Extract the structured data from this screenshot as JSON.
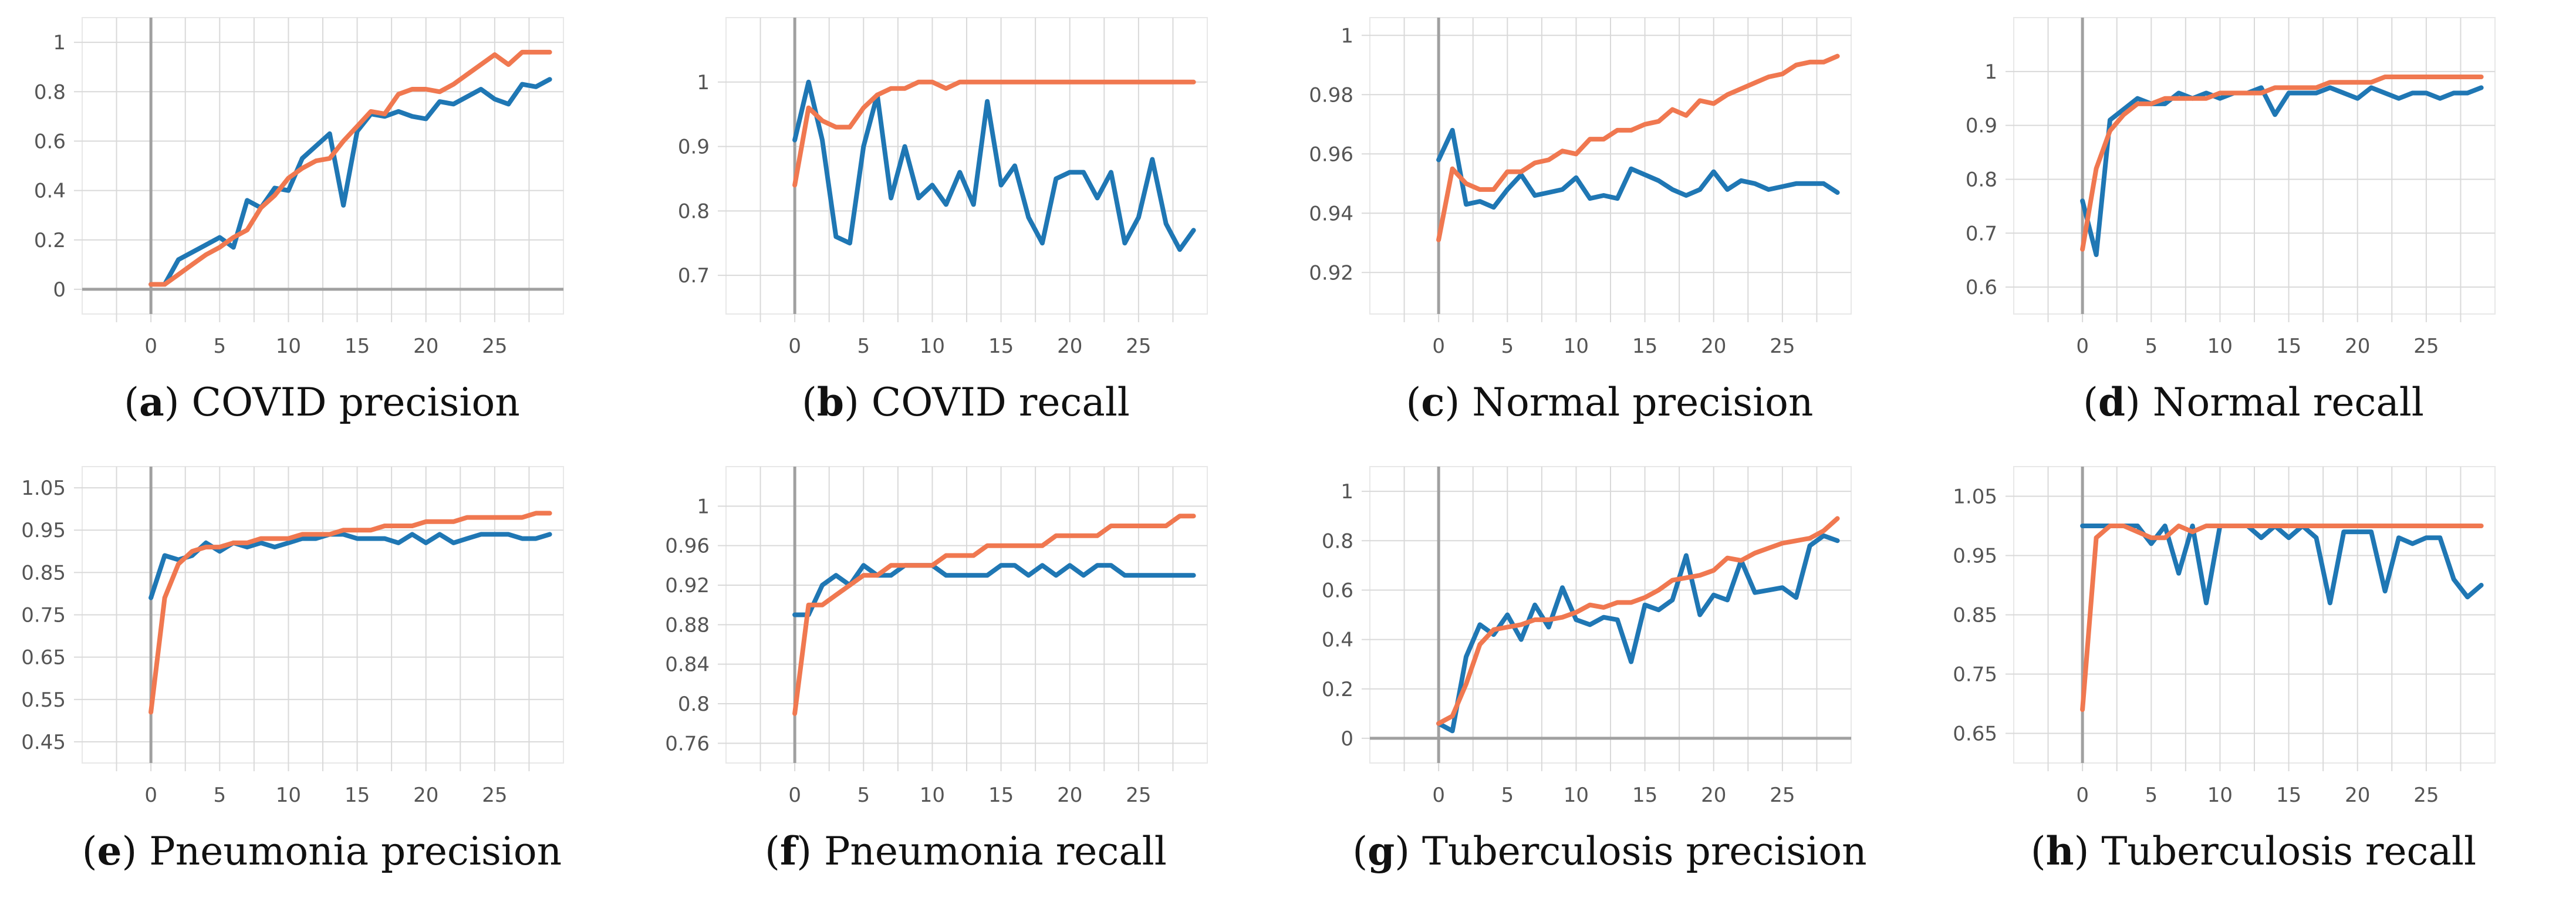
{
  "colors": {
    "series_a": "#1f77b4",
    "series_b": "#f07850"
  },
  "chart_data": [
    {
      "type": "line",
      "letter": "a",
      "caption": "COVID precision",
      "xlim": [
        -5,
        30
      ],
      "ylim": [
        -0.1,
        1.1
      ],
      "xticks": [
        0,
        5,
        10,
        15,
        20,
        25
      ],
      "yticks": [
        0,
        0.2,
        0.4,
        0.6,
        0.8,
        1
      ],
      "ytick_labels": [
        "0",
        "0.2",
        "0.4",
        "0.6",
        "0.8",
        "1"
      ],
      "x": [
        0,
        1,
        2,
        3,
        4,
        5,
        6,
        7,
        8,
        9,
        10,
        11,
        12,
        13,
        14,
        15,
        16,
        17,
        18,
        19,
        20,
        21,
        22,
        23,
        24,
        25,
        26,
        27,
        28,
        29
      ],
      "series": [
        {
          "name": "blue",
          "values": [
            0.02,
            0.02,
            0.12,
            0.15,
            0.18,
            0.21,
            0.17,
            0.36,
            0.33,
            0.41,
            0.4,
            0.53,
            0.58,
            0.63,
            0.34,
            0.64,
            0.71,
            0.7,
            0.72,
            0.7,
            0.69,
            0.76,
            0.75,
            0.78,
            0.81,
            0.77,
            0.75,
            0.83,
            0.82,
            0.85
          ]
        },
        {
          "name": "orange",
          "values": [
            0.02,
            0.02,
            0.06,
            0.1,
            0.14,
            0.17,
            0.21,
            0.24,
            0.33,
            0.38,
            0.45,
            0.49,
            0.52,
            0.53,
            0.6,
            0.66,
            0.72,
            0.71,
            0.79,
            0.81,
            0.81,
            0.8,
            0.83,
            0.87,
            0.91,
            0.95,
            0.91,
            0.96,
            0.96,
            0.96
          ]
        }
      ]
    },
    {
      "type": "line",
      "letter": "b",
      "caption": "COVID recall",
      "xlim": [
        -5,
        30
      ],
      "ylim": [
        0.64,
        1.1
      ],
      "xticks": [
        0,
        5,
        10,
        15,
        20,
        25
      ],
      "yticks": [
        0.7,
        0.8,
        0.9,
        1
      ],
      "ytick_labels": [
        "0.7",
        "0.8",
        "0.9",
        "1"
      ],
      "x": [
        0,
        1,
        2,
        3,
        4,
        5,
        6,
        7,
        8,
        9,
        10,
        11,
        12,
        13,
        14,
        15,
        16,
        17,
        18,
        19,
        20,
        21,
        22,
        23,
        24,
        25,
        26,
        27,
        28,
        29
      ],
      "series": [
        {
          "name": "blue",
          "values": [
            0.91,
            1.0,
            0.91,
            0.76,
            0.75,
            0.9,
            0.98,
            0.82,
            0.9,
            0.82,
            0.84,
            0.81,
            0.86,
            0.81,
            0.97,
            0.84,
            0.87,
            0.79,
            0.75,
            0.85,
            0.86,
            0.86,
            0.82,
            0.86,
            0.75,
            0.79,
            0.88,
            0.78,
            0.74,
            0.77
          ]
        },
        {
          "name": "orange",
          "values": [
            0.84,
            0.96,
            0.94,
            0.93,
            0.93,
            0.96,
            0.98,
            0.99,
            0.99,
            1.0,
            1.0,
            0.99,
            1.0,
            1.0,
            1.0,
            1.0,
            1.0,
            1.0,
            1.0,
            1.0,
            1.0,
            1.0,
            1.0,
            1.0,
            1.0,
            1.0,
            1.0,
            1.0,
            1.0,
            1.0
          ]
        }
      ]
    },
    {
      "type": "line",
      "letter": "c",
      "caption": "Normal precision",
      "xlim": [
        -5,
        30
      ],
      "ylim": [
        0.906,
        1.006
      ],
      "xticks": [
        0,
        5,
        10,
        15,
        20,
        25
      ],
      "yticks": [
        0.92,
        0.94,
        0.96,
        0.98,
        1
      ],
      "ytick_labels": [
        "0.92",
        "0.94",
        "0.96",
        "0.98",
        "1"
      ],
      "x": [
        0,
        1,
        2,
        3,
        4,
        5,
        6,
        7,
        8,
        9,
        10,
        11,
        12,
        13,
        14,
        15,
        16,
        17,
        18,
        19,
        20,
        21,
        22,
        23,
        24,
        25,
        26,
        27,
        28,
        29
      ],
      "series": [
        {
          "name": "blue",
          "values": [
            0.958,
            0.968,
            0.943,
            0.944,
            0.942,
            0.948,
            0.953,
            0.946,
            0.947,
            0.948,
            0.952,
            0.945,
            0.946,
            0.945,
            0.955,
            0.953,
            0.951,
            0.948,
            0.946,
            0.948,
            0.954,
            0.948,
            0.951,
            0.95,
            0.948,
            0.949,
            0.95,
            0.95,
            0.95,
            0.947
          ]
        },
        {
          "name": "orange",
          "values": [
            0.931,
            0.955,
            0.95,
            0.948,
            0.948,
            0.954,
            0.954,
            0.957,
            0.958,
            0.961,
            0.96,
            0.965,
            0.965,
            0.968,
            0.968,
            0.97,
            0.971,
            0.975,
            0.973,
            0.978,
            0.977,
            0.98,
            0.982,
            0.984,
            0.986,
            0.987,
            0.99,
            0.991,
            0.991,
            0.993
          ]
        }
      ]
    },
    {
      "type": "line",
      "letter": "d",
      "caption": "Normal recall",
      "xlim": [
        -5,
        30
      ],
      "ylim": [
        0.55,
        1.1
      ],
      "xticks": [
        0,
        5,
        10,
        15,
        20,
        25
      ],
      "yticks": [
        0.6,
        0.7,
        0.8,
        0.9,
        1
      ],
      "ytick_labels": [
        "0.6",
        "0.7",
        "0.8",
        "0.9",
        "1"
      ],
      "x": [
        0,
        1,
        2,
        3,
        4,
        5,
        6,
        7,
        8,
        9,
        10,
        11,
        12,
        13,
        14,
        15,
        16,
        17,
        18,
        19,
        20,
        21,
        22,
        23,
        24,
        25,
        26,
        27,
        28,
        29
      ],
      "series": [
        {
          "name": "blue",
          "values": [
            0.76,
            0.66,
            0.91,
            0.93,
            0.95,
            0.94,
            0.94,
            0.96,
            0.95,
            0.96,
            0.95,
            0.96,
            0.96,
            0.97,
            0.92,
            0.96,
            0.96,
            0.96,
            0.97,
            0.96,
            0.95,
            0.97,
            0.96,
            0.95,
            0.96,
            0.96,
            0.95,
            0.96,
            0.96,
            0.97
          ]
        },
        {
          "name": "orange",
          "values": [
            0.67,
            0.82,
            0.89,
            0.92,
            0.94,
            0.94,
            0.95,
            0.95,
            0.95,
            0.95,
            0.96,
            0.96,
            0.96,
            0.96,
            0.97,
            0.97,
            0.97,
            0.97,
            0.98,
            0.98,
            0.98,
            0.98,
            0.99,
            0.99,
            0.99,
            0.99,
            0.99,
            0.99,
            0.99,
            0.99
          ]
        }
      ]
    },
    {
      "type": "line",
      "letter": "e",
      "caption": "Pneumonia precision",
      "xlim": [
        -5,
        30
      ],
      "ylim": [
        0.4,
        1.1
      ],
      "xticks": [
        0,
        5,
        10,
        15,
        20,
        25
      ],
      "yticks": [
        0.45,
        0.55,
        0.65,
        0.75,
        0.85,
        0.95,
        1.05
      ],
      "ytick_labels": [
        "0.45",
        "0.55",
        "0.65",
        "0.75",
        "0.85",
        "0.95",
        "1.05"
      ],
      "x": [
        0,
        1,
        2,
        3,
        4,
        5,
        6,
        7,
        8,
        9,
        10,
        11,
        12,
        13,
        14,
        15,
        16,
        17,
        18,
        19,
        20,
        21,
        22,
        23,
        24,
        25,
        26,
        27,
        28,
        29
      ],
      "series": [
        {
          "name": "blue",
          "values": [
            0.79,
            0.89,
            0.88,
            0.89,
            0.92,
            0.9,
            0.92,
            0.91,
            0.92,
            0.91,
            0.92,
            0.93,
            0.93,
            0.94,
            0.94,
            0.93,
            0.93,
            0.93,
            0.92,
            0.94,
            0.92,
            0.94,
            0.92,
            0.93,
            0.94,
            0.94,
            0.94,
            0.93,
            0.93,
            0.94
          ]
        },
        {
          "name": "orange",
          "values": [
            0.52,
            0.79,
            0.87,
            0.9,
            0.91,
            0.91,
            0.92,
            0.92,
            0.93,
            0.93,
            0.93,
            0.94,
            0.94,
            0.94,
            0.95,
            0.95,
            0.95,
            0.96,
            0.96,
            0.96,
            0.97,
            0.97,
            0.97,
            0.98,
            0.98,
            0.98,
            0.98,
            0.98,
            0.99,
            0.99
          ]
        }
      ]
    },
    {
      "type": "line",
      "letter": "f",
      "caption": "Pneumonia recall",
      "xlim": [
        -5,
        30
      ],
      "ylim": [
        0.74,
        1.04
      ],
      "xticks": [
        0,
        5,
        10,
        15,
        20,
        25
      ],
      "yticks": [
        0.76,
        0.8,
        0.84,
        0.88,
        0.92,
        0.96,
        1
      ],
      "ytick_labels": [
        "0.76",
        "0.8",
        "0.84",
        "0.88",
        "0.92",
        "0.96",
        "1"
      ],
      "x": [
        0,
        1,
        2,
        3,
        4,
        5,
        6,
        7,
        8,
        9,
        10,
        11,
        12,
        13,
        14,
        15,
        16,
        17,
        18,
        19,
        20,
        21,
        22,
        23,
        24,
        25,
        26,
        27,
        28,
        29
      ],
      "series": [
        {
          "name": "blue",
          "values": [
            0.89,
            0.89,
            0.92,
            0.93,
            0.92,
            0.94,
            0.93,
            0.93,
            0.94,
            0.94,
            0.94,
            0.93,
            0.93,
            0.93,
            0.93,
            0.94,
            0.94,
            0.93,
            0.94,
            0.93,
            0.94,
            0.93,
            0.94,
            0.94,
            0.93,
            0.93,
            0.93,
            0.93,
            0.93,
            0.93
          ]
        },
        {
          "name": "orange",
          "values": [
            0.79,
            0.9,
            0.9,
            0.91,
            0.92,
            0.93,
            0.93,
            0.94,
            0.94,
            0.94,
            0.94,
            0.95,
            0.95,
            0.95,
            0.96,
            0.96,
            0.96,
            0.96,
            0.96,
            0.97,
            0.97,
            0.97,
            0.97,
            0.98,
            0.98,
            0.98,
            0.98,
            0.98,
            0.99,
            0.99
          ]
        }
      ]
    },
    {
      "type": "line",
      "letter": "g",
      "caption": "Tuberculosis precision",
      "xlim": [
        -5,
        30
      ],
      "ylim": [
        -0.1,
        1.1
      ],
      "xticks": [
        0,
        5,
        10,
        15,
        20,
        25
      ],
      "yticks": [
        0,
        0.2,
        0.4,
        0.6,
        0.8,
        1
      ],
      "ytick_labels": [
        "0",
        "0.2",
        "0.4",
        "0.6",
        "0.8",
        "1"
      ],
      "x": [
        0,
        1,
        2,
        3,
        4,
        5,
        6,
        7,
        8,
        9,
        10,
        11,
        12,
        13,
        14,
        15,
        16,
        17,
        18,
        19,
        20,
        21,
        22,
        23,
        24,
        25,
        26,
        27,
        28,
        29
      ],
      "series": [
        {
          "name": "blue",
          "values": [
            0.06,
            0.03,
            0.33,
            0.46,
            0.42,
            0.5,
            0.4,
            0.54,
            0.45,
            0.61,
            0.48,
            0.46,
            0.49,
            0.48,
            0.31,
            0.54,
            0.52,
            0.56,
            0.74,
            0.5,
            0.58,
            0.56,
            0.72,
            0.59,
            0.6,
            0.61,
            0.57,
            0.78,
            0.82,
            0.8
          ]
        },
        {
          "name": "orange",
          "values": [
            0.06,
            0.09,
            0.22,
            0.38,
            0.44,
            0.45,
            0.46,
            0.48,
            0.48,
            0.49,
            0.51,
            0.54,
            0.53,
            0.55,
            0.55,
            0.57,
            0.6,
            0.64,
            0.65,
            0.66,
            0.68,
            0.73,
            0.72,
            0.75,
            0.77,
            0.79,
            0.8,
            0.81,
            0.84,
            0.89
          ]
        }
      ]
    },
    {
      "type": "line",
      "letter": "h",
      "caption": "Tuberculosis recall",
      "xlim": [
        -5,
        30
      ],
      "ylim": [
        0.6,
        1.1
      ],
      "xticks": [
        0,
        5,
        10,
        15,
        20,
        25
      ],
      "yticks": [
        0.65,
        0.75,
        0.85,
        0.95,
        1.05
      ],
      "ytick_labels": [
        "0.65",
        "0.75",
        "0.85",
        "0.95",
        "1.05"
      ],
      "x": [
        0,
        1,
        2,
        3,
        4,
        5,
        6,
        7,
        8,
        9,
        10,
        11,
        12,
        13,
        14,
        15,
        16,
        17,
        18,
        19,
        20,
        21,
        22,
        23,
        24,
        25,
        26,
        27,
        28,
        29
      ],
      "series": [
        {
          "name": "blue",
          "values": [
            1.0,
            1.0,
            1.0,
            1.0,
            1.0,
            0.97,
            1.0,
            0.92,
            1.0,
            0.87,
            1.0,
            1.0,
            1.0,
            0.98,
            1.0,
            0.98,
            1.0,
            0.98,
            0.87,
            0.99,
            0.99,
            0.99,
            0.89,
            0.98,
            0.97,
            0.98,
            0.98,
            0.91,
            0.88,
            0.9
          ]
        },
        {
          "name": "orange",
          "values": [
            0.69,
            0.98,
            1.0,
            1.0,
            0.99,
            0.98,
            0.98,
            1.0,
            0.99,
            1.0,
            1.0,
            1.0,
            1.0,
            1.0,
            1.0,
            1.0,
            1.0,
            1.0,
            1.0,
            1.0,
            1.0,
            1.0,
            1.0,
            1.0,
            1.0,
            1.0,
            1.0,
            1.0,
            1.0,
            1.0
          ]
        }
      ]
    }
  ]
}
